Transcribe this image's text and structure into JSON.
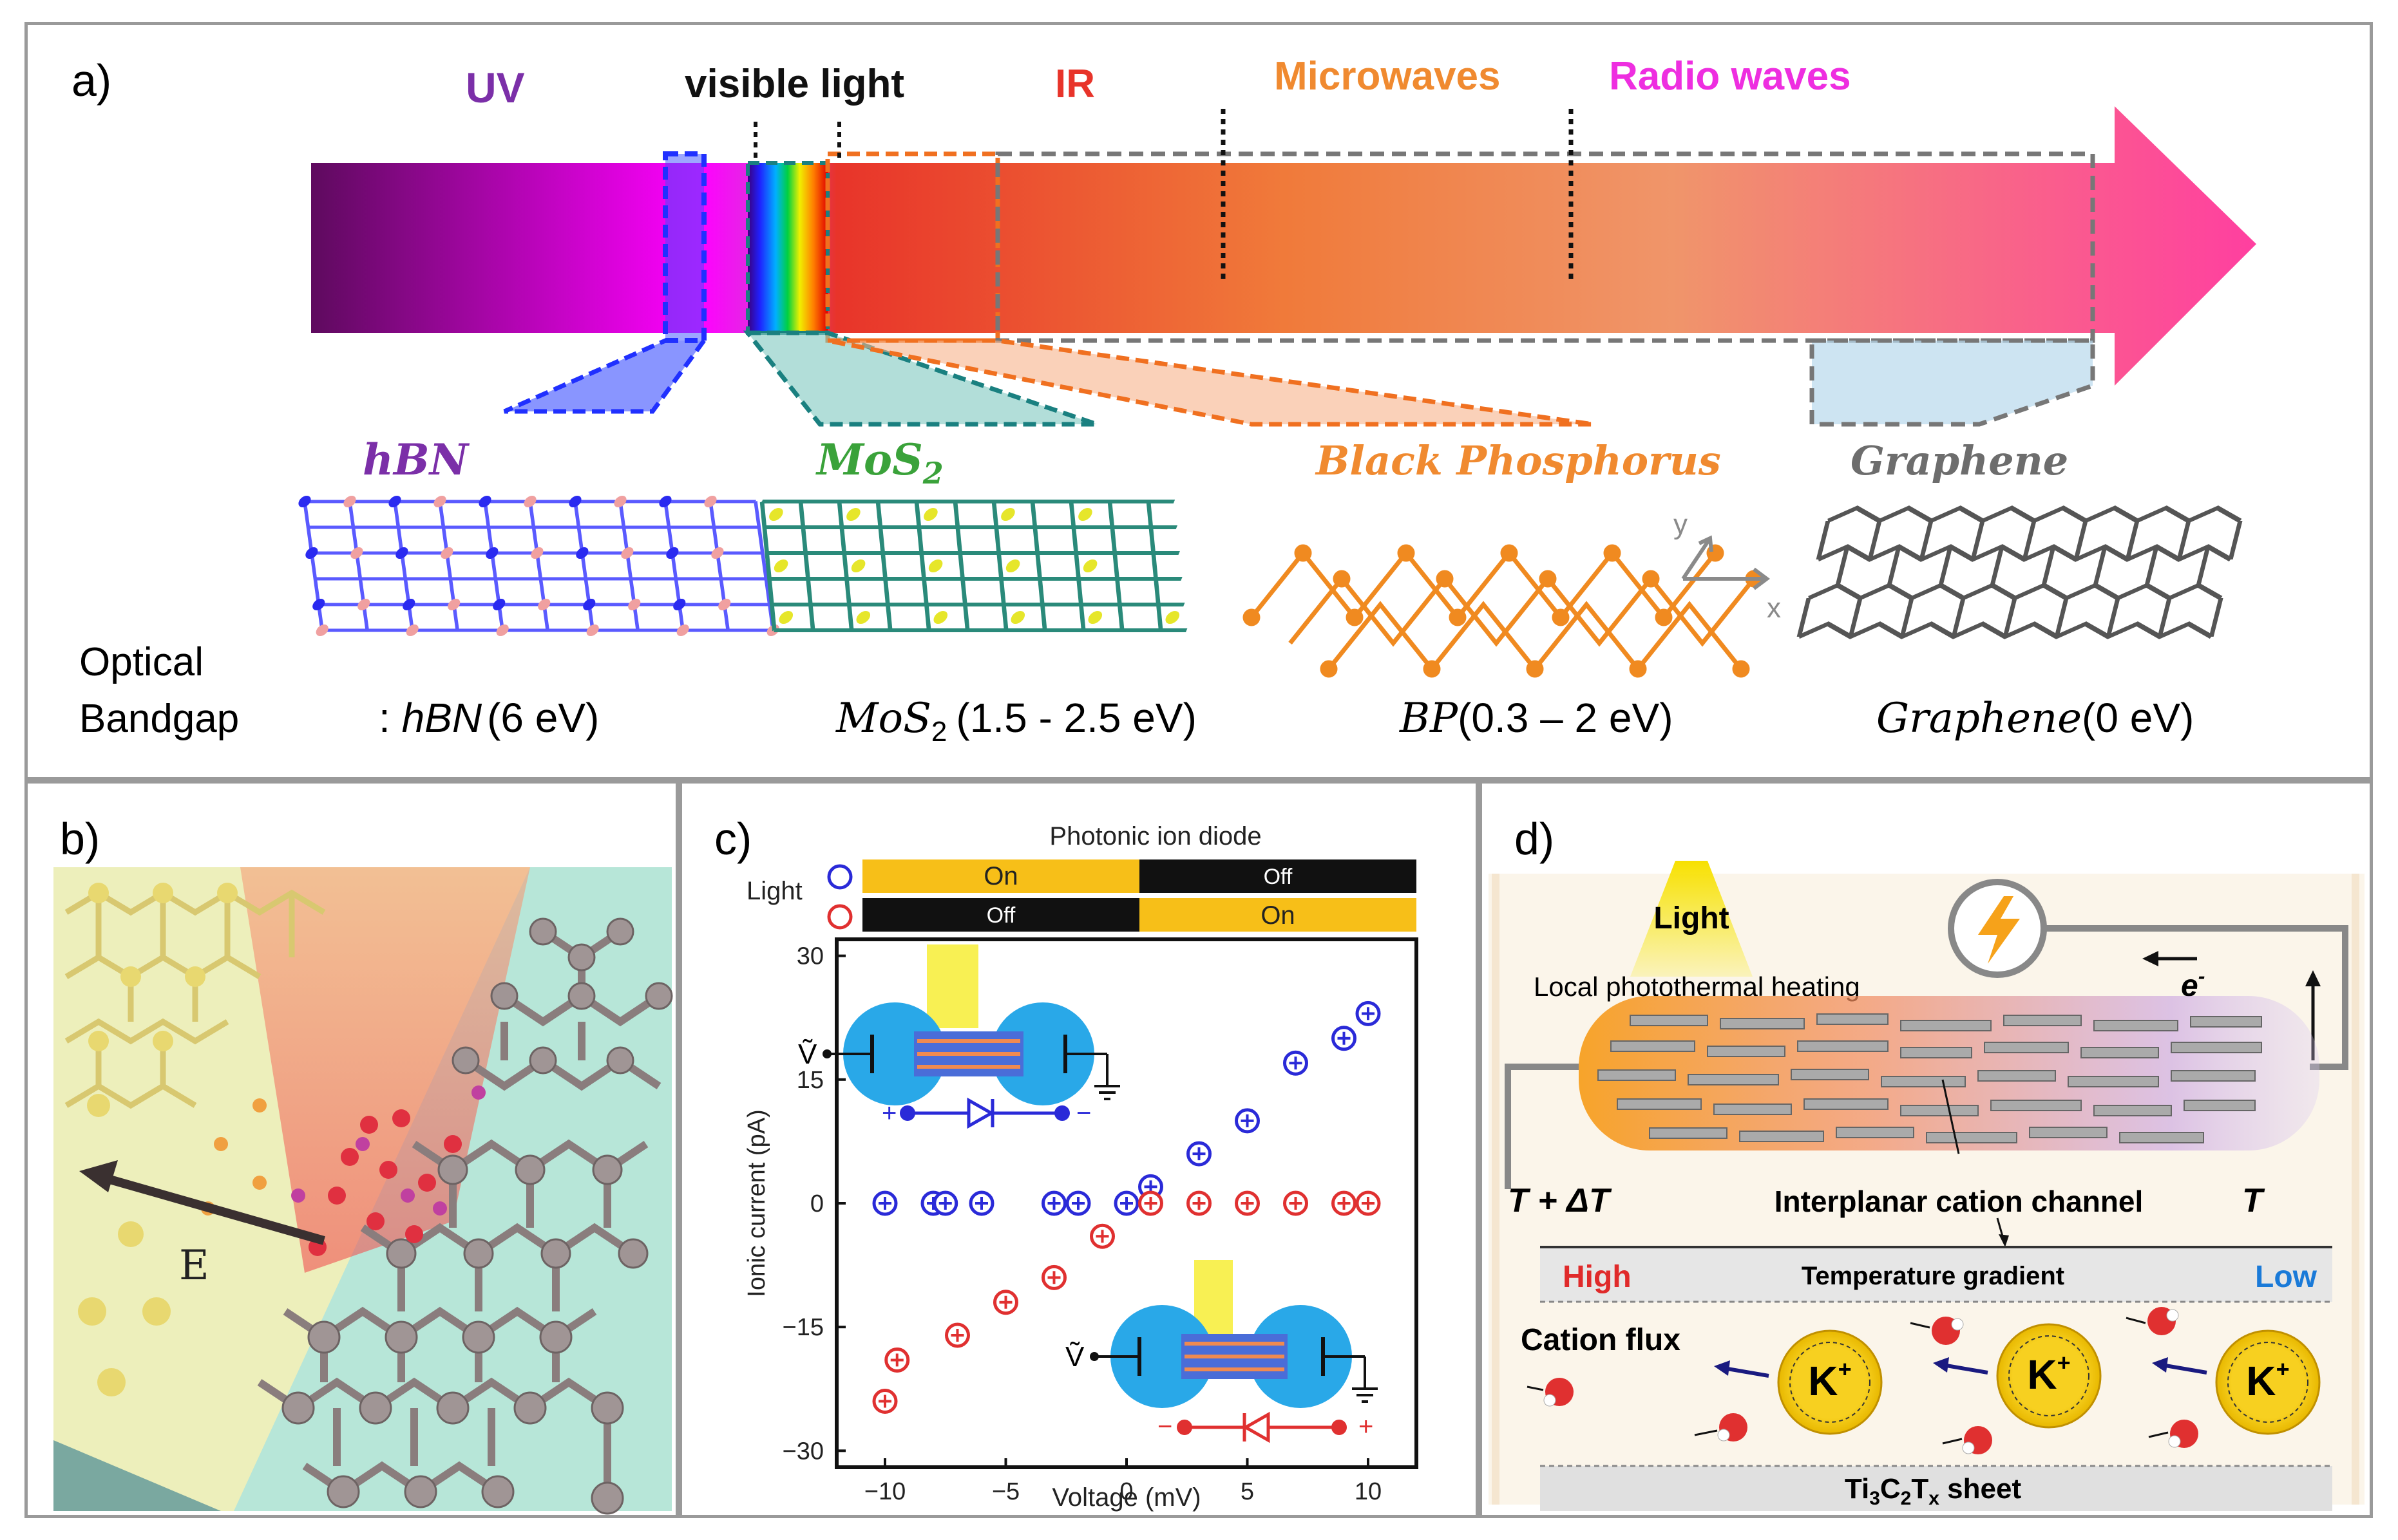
{
  "panel_a": {
    "label": "a)",
    "bands": {
      "uv": "UV",
      "visible": "visible light",
      "ir": "IR",
      "microwaves": "Microwaves",
      "radio": "Radio waves"
    },
    "materials": [
      {
        "name": "hBN",
        "color": "#7b2fa8"
      },
      {
        "name": "MoS",
        "sub": "2",
        "color": "#3aa23a"
      },
      {
        "name": "Black Phosphorus",
        "color": "#f08a30"
      },
      {
        "name": "Graphene",
        "color": "#6d6d6d"
      }
    ],
    "bandgap_title_line1": "Optical",
    "bandgap_title_line2": "Bandgap",
    "bandgaps": [
      {
        "prefix": ": ",
        "mat": "hBN",
        "sub": "",
        "value": "(6 eV)"
      },
      {
        "prefix": "",
        "mat": "MoS",
        "sub": "2",
        "value": "(1.5 - 2.5 eV)"
      },
      {
        "prefix": "",
        "mat": "BP",
        "sub": "",
        "value": "(0.3 – 2 eV)"
      },
      {
        "prefix": "",
        "mat": "Graphene",
        "sub": "",
        "value": "(0 eV)"
      }
    ],
    "axis_x": "x",
    "axis_y": "y",
    "colors": {
      "uv": "#6a0a6a",
      "visible": "#ff00ff",
      "ir": "#e8342a",
      "microwaves": "#f08a30",
      "radio": "#ff3fa0"
    }
  },
  "panel_b": {
    "label": "b)",
    "field_label": "E"
  },
  "panel_c": {
    "label": "c)",
    "title": "Photonic ion diode",
    "light_label": "Light",
    "state_on": "On",
    "state_off": "Off",
    "v_label": "Ṽ",
    "plus": "+",
    "minus": "−",
    "chart_data": {
      "type": "scatter",
      "xlabel": "Voltage (mV)",
      "ylabel": "Ionic current (pA)",
      "xlim": [
        -12,
        12
      ],
      "ylim": [
        -32,
        32
      ],
      "xticks": [
        -10,
        -5,
        0,
        5,
        10
      ],
      "yticks": [
        30,
        15,
        0,
        -15,
        -30
      ],
      "xtick_labels": [
        "−10",
        "−5",
        "0",
        "5",
        "10"
      ],
      "ytick_labels": [
        "30",
        "15",
        "0",
        "−15",
        "−30"
      ],
      "series": [
        {
          "name": "blue",
          "color": "#2a2ad8",
          "points": [
            [
              -10,
              0
            ],
            [
              -8,
              0
            ],
            [
              -7.5,
              0
            ],
            [
              -6,
              0
            ],
            [
              -3,
              0
            ],
            [
              -2,
              0
            ],
            [
              0,
              0
            ],
            [
              1,
              2
            ],
            [
              3,
              6
            ],
            [
              5,
              10
            ],
            [
              7,
              17
            ],
            [
              9,
              20
            ],
            [
              10,
              23
            ]
          ]
        },
        {
          "name": "red",
          "color": "#e03030",
          "points": [
            [
              -10,
              -24
            ],
            [
              -9.5,
              -19
            ],
            [
              -7,
              -16
            ],
            [
              -5,
              -12
            ],
            [
              -3,
              -9
            ],
            [
              -1,
              -4
            ],
            [
              1,
              0
            ],
            [
              3,
              0
            ],
            [
              5,
              0
            ],
            [
              7,
              0
            ],
            [
              9,
              0
            ],
            [
              10,
              0
            ]
          ]
        }
      ]
    }
  },
  "panel_d": {
    "label": "d)",
    "light": "Light",
    "electron": "e",
    "electron_sup": "-",
    "heating": "Local photothermal heating",
    "t_hot": "T + ΔT",
    "t_cold": "T",
    "channel": "Interplanar cation channel",
    "high": "High",
    "gradient": "Temperature gradient",
    "low": "Low",
    "cation_flux": "Cation flux",
    "ion": "K",
    "ion_sup": "+",
    "sheet_prefix": "Ti",
    "sheet_sub1": "3",
    "sheet_mid": "C",
    "sheet_sub2": "2",
    "sheet_t": "T",
    "sheet_sub3": "x",
    "sheet_suffix": " sheet"
  }
}
